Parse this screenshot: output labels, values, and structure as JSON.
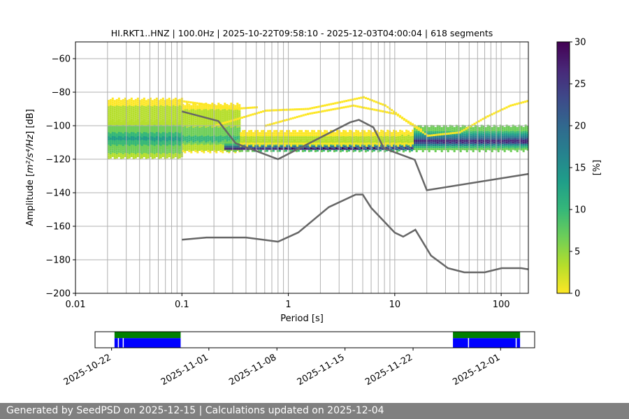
{
  "chart_data": {
    "type": "heatmap",
    "title": "HI.RKT1..HNZ | 100.0Hz | 2025-10-22T09:58:10 - 2025-12-03T04:00:04 | 618 segments",
    "xlabel": "Period [s]",
    "ylabel_pre": "Amplitude [",
    "ylabel_units": "m²/s⁴/Hz",
    "ylabel_post": "] [dB]",
    "xscale": "log",
    "xlim": [
      0.01,
      180
    ],
    "ylim": [
      -200,
      -50
    ],
    "x_ticks": [
      {
        "value": 0.01,
        "label": "0.01"
      },
      {
        "value": 0.1,
        "label": "0.1"
      },
      {
        "value": 1,
        "label": "1"
      },
      {
        "value": 10,
        "label": "10"
      },
      {
        "value": 100,
        "label": "100"
      }
    ],
    "y_ticks": [
      {
        "value": -60,
        "label": "−60"
      },
      {
        "value": -80,
        "label": "−80"
      },
      {
        "value": -100,
        "label": "−100"
      },
      {
        "value": -120,
        "label": "−120"
      },
      {
        "value": -140,
        "label": "−140"
      },
      {
        "value": -160,
        "label": "−160"
      },
      {
        "value": -180,
        "label": "−180"
      },
      {
        "value": -200,
        "label": "−200"
      }
    ],
    "colorbar": {
      "label": "[%]",
      "min": 0,
      "max": 30,
      "ticks": [
        {
          "value": 0,
          "label": "0"
        },
        {
          "value": 5,
          "label": "5"
        },
        {
          "value": 10,
          "label": "10"
        },
        {
          "value": 15,
          "label": "15"
        },
        {
          "value": 20,
          "label": "20"
        },
        {
          "value": 25,
          "label": "25"
        },
        {
          "value": 30,
          "label": "30"
        }
      ],
      "colors": [
        "#fde725",
        "#b5de2b",
        "#6ece58",
        "#35b779",
        "#1f9e89",
        "#26828e",
        "#31688e",
        "#3e4989",
        "#482878",
        "#440154"
      ]
    },
    "grid_periods": [
      0.02,
      0.03,
      0.04,
      0.05,
      0.06,
      0.07,
      0.08,
      0.09,
      0.1,
      0.2,
      0.3,
      0.4,
      0.5,
      0.6,
      0.7,
      0.8,
      0.9,
      1,
      2,
      3,
      4,
      5,
      6,
      7,
      8,
      9,
      10,
      20,
      30,
      40,
      50,
      60,
      70,
      80,
      90,
      100,
      150
    ],
    "model_curves": [
      {
        "name": "high-noise-model",
        "color": "#666666",
        "points": [
          [
            0.1,
            -91.5
          ],
          [
            0.22,
            -97.2
          ],
          [
            0.32,
            -110.5
          ],
          [
            0.8,
            -120
          ],
          [
            3.8,
            -98
          ],
          [
            4.6,
            -96.5
          ],
          [
            6.3,
            -101
          ],
          [
            7.9,
            -113.5
          ],
          [
            15.4,
            -120.3
          ],
          [
            20,
            -138.5
          ],
          [
            180,
            -128.8
          ]
        ]
      },
      {
        "name": "low-noise-model",
        "color": "#666666",
        "points": [
          [
            0.1,
            -168
          ],
          [
            0.17,
            -166.7
          ],
          [
            0.4,
            -166.7
          ],
          [
            0.8,
            -169.2
          ],
          [
            1.24,
            -163.7
          ],
          [
            2.4,
            -148.6
          ],
          [
            4.3,
            -141.1
          ],
          [
            5,
            -141.1
          ],
          [
            6,
            -149
          ],
          [
            10,
            -163.8
          ],
          [
            12,
            -166.2
          ],
          [
            15.6,
            -162.1
          ],
          [
            21.9,
            -177.5
          ],
          [
            31.6,
            -185
          ],
          [
            45,
            -187.5
          ],
          [
            70,
            -187.5
          ],
          [
            101,
            -185
          ],
          [
            154,
            -185
          ],
          [
            180,
            -185.7
          ]
        ]
      }
    ],
    "psd_bands": [
      {
        "pmin": 0.02,
        "pmax": 0.1,
        "lo": -113,
        "hi": -84,
        "cLo": 0.05,
        "cHi": 0.3,
        "core": -106
      },
      {
        "pmin": 0.02,
        "pmax": 0.1,
        "lo": -119,
        "hi": -97,
        "cLo": 0.15,
        "cHi": 0.45,
        "core": -107
      },
      {
        "pmin": 0.1,
        "pmax": 0.35,
        "lo": -115,
        "hi": -87,
        "cLo": 0.05,
        "cHi": 0.35,
        "core": -108
      },
      {
        "pmin": 0.25,
        "pmax": 15,
        "lo": -115,
        "hi": -109,
        "cLo": 0.2,
        "cHi": 1.0,
        "core": -113
      },
      {
        "pmin": 15,
        "pmax": 180,
        "lo": -114,
        "hi": -100,
        "cLo": 0.2,
        "cHi": 1.0,
        "core": -109
      },
      {
        "pmin": 0.35,
        "pmax": 15,
        "lo": -111,
        "hi": -103,
        "cLo": 0.03,
        "cHi": 0.15,
        "core": -108
      }
    ],
    "psd_arcs": [
      [
        [
          0.2,
          -100
        ],
        [
          0.6,
          -91
        ],
        [
          1.5,
          -90
        ],
        [
          3,
          -86
        ],
        [
          5,
          -83
        ],
        [
          8,
          -88
        ],
        [
          12,
          -96
        ],
        [
          18,
          -103
        ]
      ],
      [
        [
          0.6,
          -100
        ],
        [
          1.5,
          -93
        ],
        [
          4,
          -88
        ],
        [
          10,
          -93
        ],
        [
          20,
          -106
        ],
        [
          40,
          -104
        ],
        [
          70,
          -95
        ],
        [
          120,
          -88
        ],
        [
          180,
          -85
        ]
      ],
      [
        [
          0.09,
          -85
        ],
        [
          0.15,
          -87
        ],
        [
          0.3,
          -90
        ],
        [
          0.5,
          -89
        ]
      ]
    ],
    "availability": {
      "date_ticks": [
        "2025-10-22",
        "2025-11-01",
        "2025-11-08",
        "2025-11-15",
        "2025-11-22",
        "2025-12-01"
      ],
      "date_tick_days": [
        0,
        10,
        17,
        24,
        31,
        40
      ],
      "start_day": -1.7,
      "end_day": 43.5,
      "segments": [
        {
          "start": 0.3,
          "end": 7.1
        },
        {
          "start": 35.1,
          "end": 42.0
        }
      ],
      "gap_lines": [
        0.7,
        1.2,
        36.7,
        41.6
      ],
      "colors": {
        "upper": "#008000",
        "lower": "#0000ff"
      }
    }
  },
  "footer": {
    "text": "Generated by SeedPSD on 2025-12-15 | Calculations updated on 2025-12-04"
  }
}
